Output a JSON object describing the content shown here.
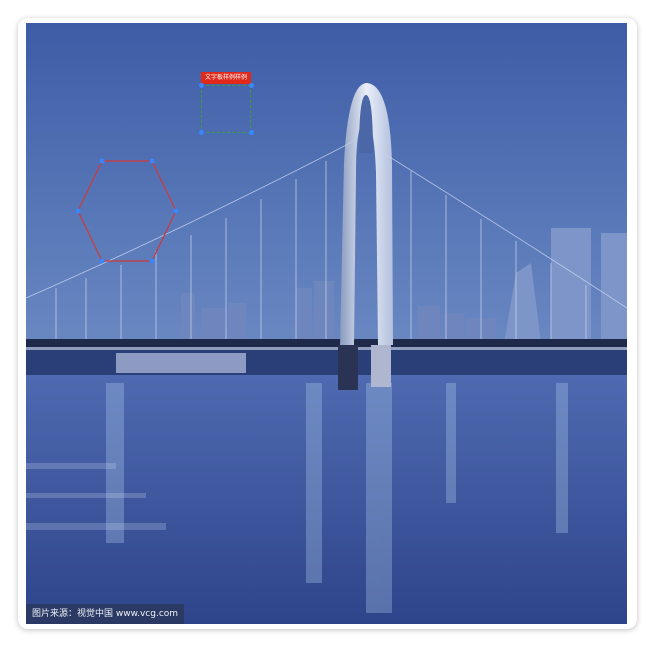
{
  "canvas": {
    "source_caption": "图片来源：视觉中国 www.vcg.com"
  },
  "annotations": {
    "text_label": "文字板样例样例",
    "shapes": [
      "hexagon",
      "text-box"
    ],
    "colors": {
      "hexagon_stroke": "#cc3b3b",
      "handle": "#3a86ff",
      "text_box_border": "#3f9a3f",
      "text_tag_bg": "#e0291b"
    }
  },
  "icons": [
    "hexagon-shape-icon",
    "text-box-icon"
  ]
}
